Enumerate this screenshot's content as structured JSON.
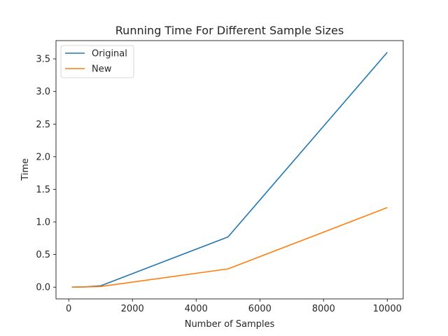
{
  "chart_data": {
    "type": "line",
    "title": "Running Time For Different Sample Sizes",
    "xlabel": "Number of Samples",
    "ylabel": "Time",
    "xlim": [
      -400,
      10500
    ],
    "ylim": [
      -0.18,
      3.78
    ],
    "xticks": [
      0,
      2000,
      4000,
      6000,
      8000,
      10000
    ],
    "xtick_labels": [
      "0",
      "2000",
      "4000",
      "6000",
      "8000",
      "10000"
    ],
    "yticks": [
      0.0,
      0.5,
      1.0,
      1.5,
      2.0,
      2.5,
      3.0,
      3.5
    ],
    "ytick_labels": [
      "0.0",
      "0.5",
      "1.0",
      "1.5",
      "2.0",
      "2.5",
      "3.0",
      "3.5"
    ],
    "legend_position": "top-left",
    "series": [
      {
        "name": "Original",
        "color": "#1f77b4",
        "x": [
          100,
          500,
          1000,
          5000,
          10000
        ],
        "y": [
          0.0,
          0.004,
          0.02,
          0.77,
          3.6
        ]
      },
      {
        "name": "New",
        "color": "#ff7f0e",
        "x": [
          100,
          500,
          1000,
          5000,
          10000
        ],
        "y": [
          0.0,
          0.003,
          0.01,
          0.28,
          1.22
        ]
      }
    ]
  }
}
